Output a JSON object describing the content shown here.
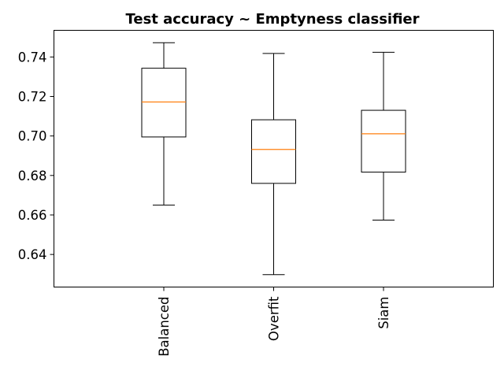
{
  "chart_data": {
    "type": "box",
    "title": "Test accuracy ~ Emptyness classifier",
    "xlabel": "",
    "ylabel": "",
    "ylim": [
      0.6235,
      0.7535
    ],
    "yticks": [
      "0.64",
      "0.66",
      "0.68",
      "0.70",
      "0.72",
      "0.74"
    ],
    "categories": [
      "Balanced",
      "Overfit",
      "Siam"
    ],
    "boxes": [
      {
        "name": "Balanced",
        "whisker_low": 0.665,
        "q1": 0.6995,
        "median": 0.7172,
        "q3": 0.7343,
        "whisker_high": 0.7472
      },
      {
        "name": "Overfit",
        "whisker_low": 0.6298,
        "q1": 0.676,
        "median": 0.6932,
        "q3": 0.7082,
        "whisker_high": 0.7418
      },
      {
        "name": "Siam",
        "whisker_low": 0.6574,
        "q1": 0.6817,
        "median": 0.7011,
        "q3": 0.713,
        "whisker_high": 0.7424
      }
    ],
    "colors": {
      "box": "#000000",
      "median": "#ff7f0e",
      "background": "#ffffff"
    },
    "grid": false
  }
}
